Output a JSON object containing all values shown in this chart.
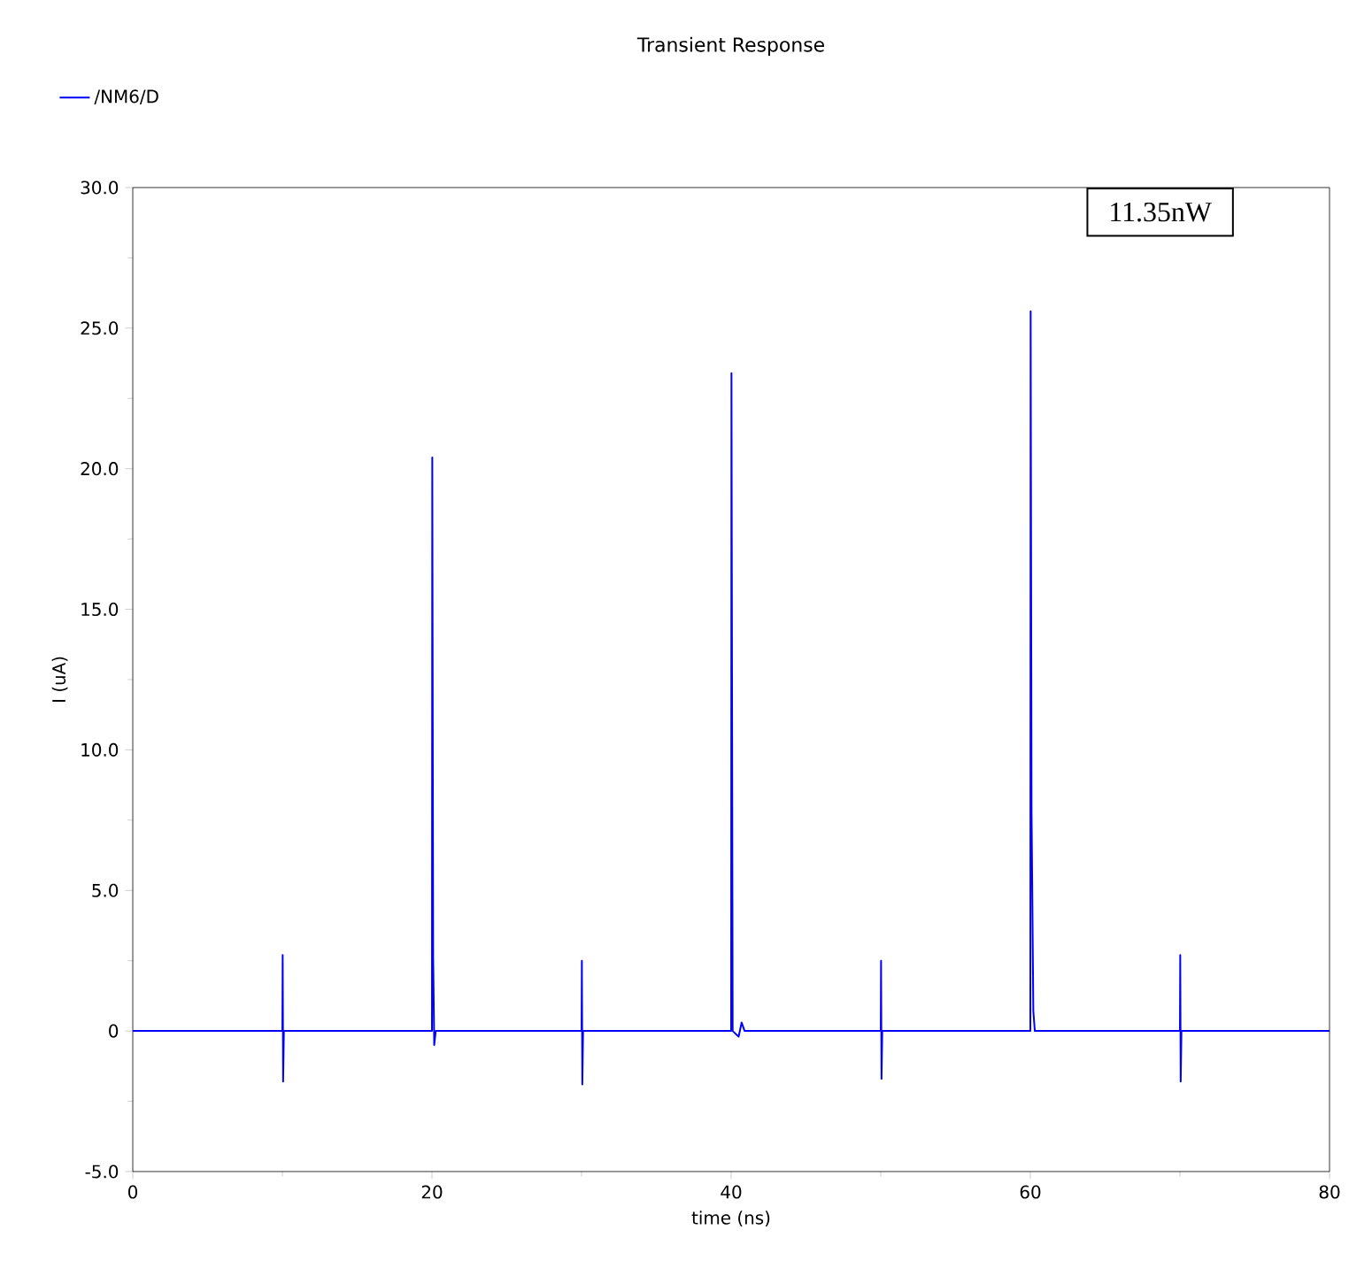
{
  "chart_data": {
    "type": "line",
    "title": "Transient Response",
    "xlabel": "time (ns)",
    "ylabel": "I (uA)",
    "annotations": [
      "11.35nW"
    ],
    "series": [
      {
        "name": "/NM6/D",
        "color": "#0000ff",
        "x": [
          0,
          10,
          10.02,
          10.05,
          10.1,
          20,
          20.02,
          20.08,
          20.15,
          20.25,
          30,
          30.02,
          30.05,
          30.1,
          40,
          40.02,
          40.1,
          40.5,
          40.7,
          40.9,
          50,
          50.02,
          50.05,
          50.1,
          60,
          60.02,
          60.08,
          60.2,
          60.3,
          70,
          70.02,
          70.05,
          70.1,
          80
        ],
        "values": [
          0,
          0,
          2.7,
          -1.8,
          0,
          0,
          20.4,
          2.6,
          -0.5,
          0,
          0,
          2.5,
          -1.9,
          0,
          0,
          23.4,
          0,
          -0.2,
          0.3,
          0,
          0,
          2.5,
          -1.7,
          0,
          0,
          25.6,
          7.8,
          0.7,
          0,
          0,
          2.7,
          -1.8,
          0,
          0
        ]
      }
    ],
    "xlim": [
      0,
      80
    ],
    "ylim": [
      -5,
      30
    ],
    "xticks": [
      0,
      20,
      40,
      60,
      80
    ],
    "yticks": [
      {
        "value": -5,
        "label": "-5.0"
      },
      {
        "value": 0,
        "label": "0"
      },
      {
        "value": 5,
        "label": "5.0"
      },
      {
        "value": 10,
        "label": "10.0"
      },
      {
        "value": 15,
        "label": "15.0"
      },
      {
        "value": 20,
        "label": "20.0"
      },
      {
        "value": 25,
        "label": "25.0"
      },
      {
        "value": 30,
        "label": "30.0"
      }
    ],
    "legend": "top left",
    "grid": false,
    "marker": "none",
    "line_style": "solid"
  }
}
